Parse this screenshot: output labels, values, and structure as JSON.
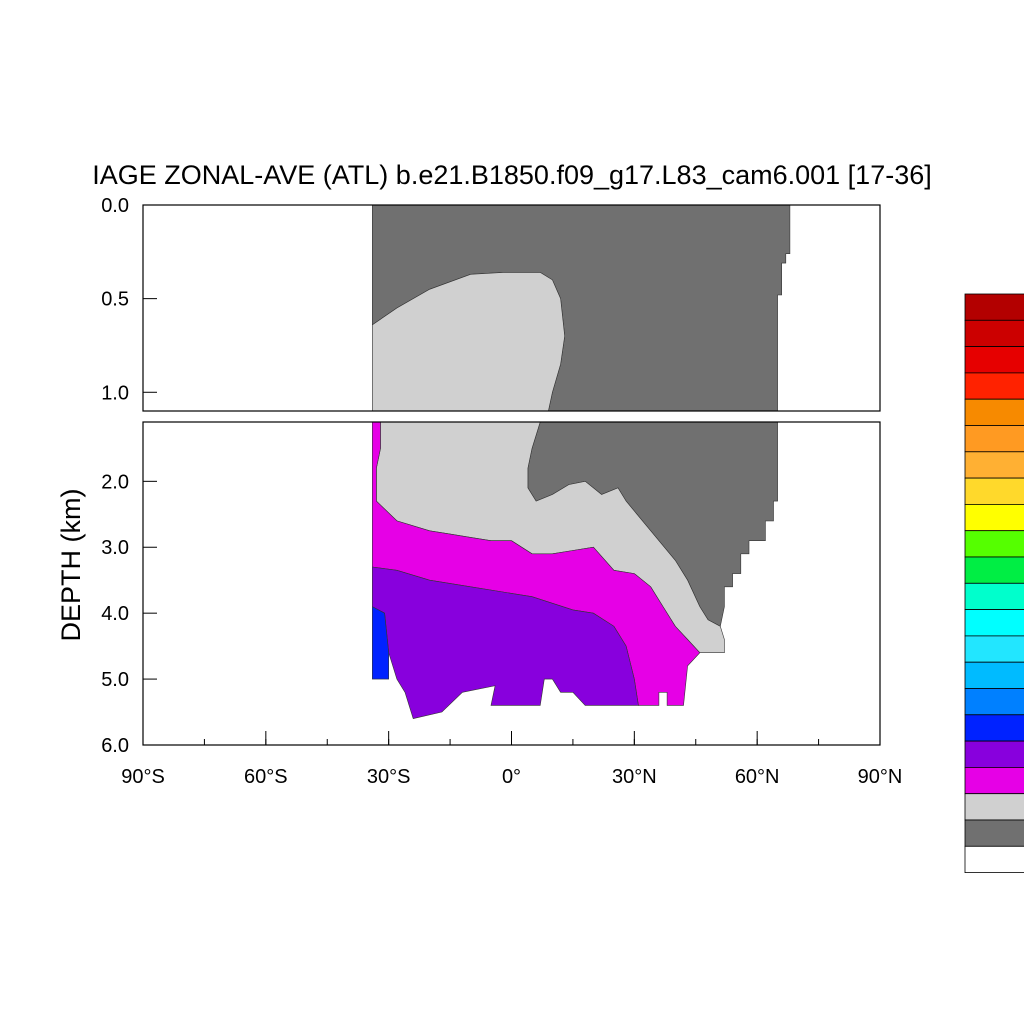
{
  "chart_data": {
    "type": "contour",
    "title": "IAGE ZONAL-AVE (ATL) b.e21.B1850.f09_g17.L83_cam6.001 [17-36]",
    "ylabel": "DEPTH (km)",
    "xlabel": "",
    "x_ticks": [
      "90°S",
      "60°S",
      "30°S",
      "0°",
      "30°N",
      "60°N",
      "90°N"
    ],
    "x_range": [
      -90,
      90
    ],
    "upper_panel": {
      "ylim": [
        0.0,
        1.1
      ],
      "y_ticks": [
        "0.0",
        "0.5",
        "1.0"
      ],
      "y_tick_values": [
        0.0,
        0.5,
        1.0
      ]
    },
    "lower_panel": {
      "ylim": [
        1.1,
        6.0
      ],
      "y_ticks": [
        "2.0",
        "3.0",
        "4.0",
        "5.0",
        "6.0"
      ],
      "y_tick_values": [
        2.0,
        3.0,
        4.0,
        5.0,
        6.0
      ]
    },
    "colorbar_colors": [
      "#b30000",
      "#cc0000",
      "#e60000",
      "#ff2200",
      "#f78a00",
      "#ff9a22",
      "#ffb033",
      "#ffd92b",
      "#ffff00",
      "#55ff00",
      "#00ee44",
      "#00ffcc",
      "#00ffff",
      "#22e6ff",
      "#00bbff",
      "#0080ff",
      "#0022ff",
      "#8800dd",
      "#e600e6",
      "#d0d0d0",
      "#707070",
      "#ffffff"
    ],
    "regions": [
      {
        "name": "dark-gray",
        "color": "#707070",
        "upper": [
          [
            -34,
            0
          ],
          [
            68,
            0
          ],
          [
            68,
            0.26
          ],
          [
            67,
            0.26
          ],
          [
            67,
            0.31
          ],
          [
            66,
            0.31
          ],
          [
            66,
            0.48
          ],
          [
            65,
            0.48
          ],
          [
            65,
            1.1
          ],
          [
            9,
            1.1
          ],
          [
            10,
            1.0
          ],
          [
            12,
            0.85
          ],
          [
            13,
            0.7
          ],
          [
            12,
            0.5
          ],
          [
            10,
            0.4
          ],
          [
            7,
            0.36
          ],
          [
            -2,
            0.36
          ],
          [
            -10,
            0.37
          ],
          [
            -20,
            0.45
          ],
          [
            -28,
            0.55
          ],
          [
            -34,
            0.64
          ]
        ],
        "lower": [
          [
            7,
            1.1
          ],
          [
            65,
            1.1
          ],
          [
            65,
            2.3
          ],
          [
            64,
            2.3
          ],
          [
            64,
            2.6
          ],
          [
            62,
            2.6
          ],
          [
            62,
            2.9
          ],
          [
            58,
            2.9
          ],
          [
            58,
            3.1
          ],
          [
            56,
            3.1
          ],
          [
            56,
            3.4
          ],
          [
            54,
            3.4
          ],
          [
            54,
            3.6
          ],
          [
            52,
            3.6
          ],
          [
            52,
            3.9
          ],
          [
            51,
            4.2
          ],
          [
            48,
            4.1
          ],
          [
            46,
            3.9
          ],
          [
            43,
            3.5
          ],
          [
            40,
            3.2
          ],
          [
            36,
            2.9
          ],
          [
            32,
            2.6
          ],
          [
            28,
            2.3
          ],
          [
            26,
            2.1
          ],
          [
            22,
            2.2
          ],
          [
            18,
            2.0
          ],
          [
            14,
            2.05
          ],
          [
            10,
            2.2
          ],
          [
            6,
            2.3
          ],
          [
            4,
            2.1
          ],
          [
            4,
            1.8
          ],
          [
            5,
            1.5
          ]
        ]
      },
      {
        "name": "light-gray",
        "color": "#d0d0d0",
        "upper": [
          [
            -34,
            0.64
          ],
          [
            -28,
            0.55
          ],
          [
            -20,
            0.45
          ],
          [
            -10,
            0.37
          ],
          [
            -2,
            0.36
          ],
          [
            7,
            0.36
          ],
          [
            10,
            0.4
          ],
          [
            12,
            0.5
          ],
          [
            13,
            0.7
          ],
          [
            12,
            0.85
          ],
          [
            10,
            1.0
          ],
          [
            9,
            1.1
          ],
          [
            -34,
            1.1
          ]
        ],
        "lower": [
          [
            -32,
            1.1
          ],
          [
            7,
            1.1
          ],
          [
            5,
            1.5
          ],
          [
            4,
            1.8
          ],
          [
            4,
            2.1
          ],
          [
            6,
            2.3
          ],
          [
            10,
            2.2
          ],
          [
            14,
            2.05
          ],
          [
            18,
            2.0
          ],
          [
            22,
            2.2
          ],
          [
            26,
            2.1
          ],
          [
            28,
            2.3
          ],
          [
            32,
            2.6
          ],
          [
            36,
            2.9
          ],
          [
            40,
            3.2
          ],
          [
            43,
            3.5
          ],
          [
            46,
            3.9
          ],
          [
            48,
            4.1
          ],
          [
            51,
            4.2
          ],
          [
            52,
            4.4
          ],
          [
            52,
            4.6
          ],
          [
            46,
            4.6
          ],
          [
            43,
            4.4
          ],
          [
            40,
            4.2
          ],
          [
            37,
            3.9
          ],
          [
            34,
            3.6
          ],
          [
            30,
            3.4
          ],
          [
            25,
            3.35
          ],
          [
            20,
            3.0
          ],
          [
            15,
            3.05
          ],
          [
            10,
            3.1
          ],
          [
            5,
            3.1
          ],
          [
            0,
            2.9
          ],
          [
            -5,
            2.9
          ],
          [
            -10,
            2.85
          ],
          [
            -15,
            2.8
          ],
          [
            -20,
            2.75
          ],
          [
            -28,
            2.6
          ],
          [
            -33,
            2.3
          ],
          [
            -33,
            1.8
          ],
          [
            -32,
            1.5
          ]
        ]
      },
      {
        "name": "magenta",
        "color": "#e600e6",
        "lower": [
          [
            -34,
            1.1
          ],
          [
            -32,
            1.1
          ],
          [
            -32,
            1.5
          ],
          [
            -33,
            1.8
          ],
          [
            -33,
            2.3
          ],
          [
            -28,
            2.6
          ],
          [
            -20,
            2.75
          ],
          [
            -15,
            2.8
          ],
          [
            -10,
            2.85
          ],
          [
            -5,
            2.9
          ],
          [
            0,
            2.9
          ],
          [
            5,
            3.1
          ],
          [
            10,
            3.1
          ],
          [
            15,
            3.05
          ],
          [
            20,
            3.0
          ],
          [
            25,
            3.35
          ],
          [
            30,
            3.4
          ],
          [
            34,
            3.6
          ],
          [
            37,
            3.9
          ],
          [
            40,
            4.2
          ],
          [
            43,
            4.4
          ],
          [
            46,
            4.6
          ],
          [
            43,
            4.8
          ],
          [
            42,
            5.4
          ],
          [
            38,
            5.4
          ],
          [
            38,
            5.2
          ],
          [
            36,
            5.2
          ],
          [
            36,
            5.4
          ],
          [
            31,
            5.4
          ],
          [
            30,
            5.0
          ],
          [
            28,
            4.5
          ],
          [
            25,
            4.2
          ],
          [
            20,
            4.0
          ],
          [
            15,
            3.95
          ],
          [
            10,
            3.85
          ],
          [
            5,
            3.75
          ],
          [
            0,
            3.7
          ],
          [
            -10,
            3.6
          ],
          [
            -20,
            3.5
          ],
          [
            -28,
            3.35
          ],
          [
            -34,
            3.3
          ]
        ]
      },
      {
        "name": "purple",
        "color": "#8800dd",
        "lower": [
          [
            -34,
            3.3
          ],
          [
            -28,
            3.35
          ],
          [
            -20,
            3.5
          ],
          [
            -10,
            3.6
          ],
          [
            0,
            3.7
          ],
          [
            5,
            3.75
          ],
          [
            10,
            3.85
          ],
          [
            15,
            3.95
          ],
          [
            20,
            4.0
          ],
          [
            25,
            4.2
          ],
          [
            28,
            4.5
          ],
          [
            30,
            5.0
          ],
          [
            31,
            5.4
          ],
          [
            18,
            5.4
          ],
          [
            15,
            5.2
          ],
          [
            12,
            5.2
          ],
          [
            10,
            5.0
          ],
          [
            8,
            5.0
          ],
          [
            7,
            5.4
          ],
          [
            -5,
            5.4
          ],
          [
            -4,
            5.1
          ],
          [
            -12,
            5.2
          ],
          [
            -17,
            5.5
          ],
          [
            -24,
            5.6
          ],
          [
            -26,
            5.2
          ],
          [
            -28,
            5.0
          ],
          [
            -30,
            4.6
          ],
          [
            -31,
            4.0
          ],
          [
            -34,
            3.9
          ]
        ]
      },
      {
        "name": "blue",
        "color": "#0022ff",
        "lower": [
          [
            -34,
            3.9
          ],
          [
            -31,
            4.0
          ],
          [
            -30,
            4.6
          ],
          [
            -30,
            5.0
          ],
          [
            -34,
            5.0
          ]
        ]
      }
    ]
  }
}
